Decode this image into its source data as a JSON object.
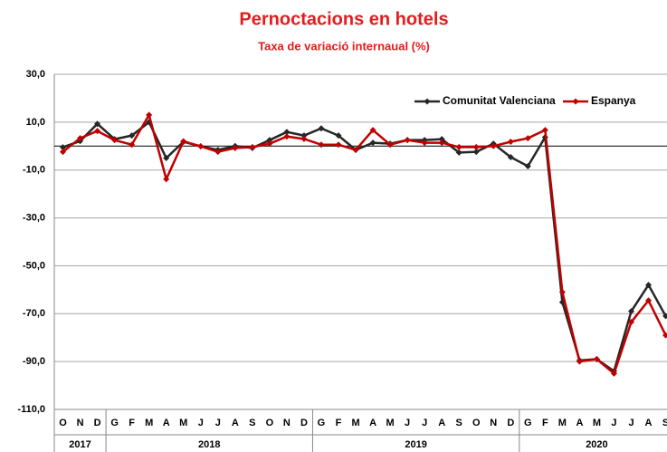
{
  "chart_data": {
    "type": "line",
    "title": "Pernoctacions en hotels",
    "subtitle": "Taxa de variació internaual (%)",
    "groups": [
      {
        "label": "2017",
        "categories": [
          "O",
          "N",
          "D"
        ]
      },
      {
        "label": "2018",
        "categories": [
          "G",
          "F",
          "M",
          "A",
          "M",
          "J",
          "J",
          "A",
          "S",
          "O",
          "N",
          "D"
        ]
      },
      {
        "label": "2019",
        "categories": [
          "G",
          "F",
          "M",
          "A",
          "M",
          "J",
          "J",
          "A",
          "S",
          "O",
          "N",
          "D"
        ]
      },
      {
        "label": "2020",
        "categories": [
          "G",
          "F",
          "M",
          "A",
          "M",
          "J",
          "J",
          "A",
          "S"
        ]
      }
    ],
    "series": [
      {
        "name": "Comunitat Valenciana",
        "color": "#262626",
        "values": [
          -0.5,
          2.1,
          9.3,
          2.9,
          4.4,
          10,
          -5,
          1.8,
          -0.1,
          -1.6,
          0,
          -0.8,
          2.5,
          5.9,
          4.4,
          7.4,
          4.4,
          -1.6,
          1.4,
          1,
          2.5,
          2.5,
          2.9,
          -2.7,
          -2.4,
          1,
          -4.6,
          -8.4,
          3.7,
          -65.2,
          -89.5,
          -89,
          -94,
          -69,
          -58,
          -71
        ]
      },
      {
        "name": "Espanya",
        "color": "#c00000",
        "values": [
          -2.4,
          3.3,
          6.3,
          2.5,
          0.6,
          13,
          -13.8,
          2,
          -0.1,
          -2.4,
          -0.8,
          -0.4,
          1,
          4,
          3,
          0.6,
          0.6,
          -1.6,
          6.7,
          0.6,
          2.5,
          1.4,
          1.4,
          -0.4,
          -0.4,
          0,
          1.8,
          3.3,
          6.7,
          -61,
          -90,
          -89,
          -95,
          -73.5,
          -64.5,
          -79
        ]
      }
    ],
    "ylim": [
      -110,
      30
    ],
    "yticks": [
      {
        "value": 30,
        "label": "30,0"
      },
      {
        "value": 10,
        "label": "10,0"
      },
      {
        "value": -10,
        "label": "-10,0"
      },
      {
        "value": -30,
        "label": "-30,0"
      },
      {
        "value": -50,
        "label": "-50,0"
      },
      {
        "value": -70,
        "label": "-70,0"
      },
      {
        "value": -90,
        "label": "-90,0"
      },
      {
        "value": -110,
        "label": "-110,0"
      }
    ],
    "grid": true
  }
}
